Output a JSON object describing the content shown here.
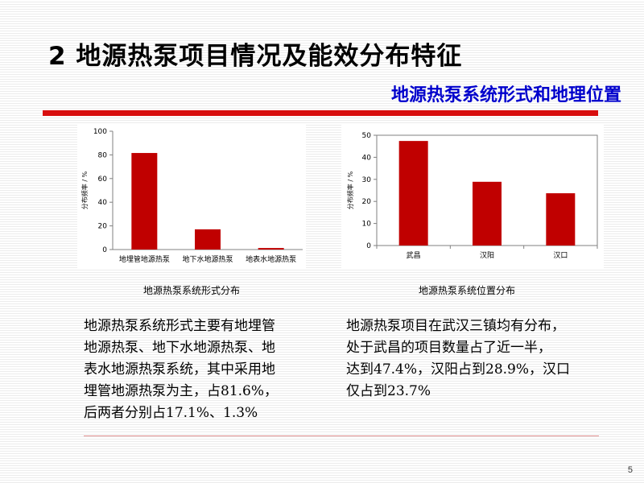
{
  "slide": {
    "title": "2 地源热泵项目情况及能效分布特征",
    "subtitle": "地源热泵系统形式和地理位置",
    "page_number": "5",
    "accent_color": "#d80f0f",
    "subtitle_color": "#0000cc"
  },
  "captions": {
    "left": "地源热泵系统形式分布",
    "right": "地源热泵系统位置分布"
  },
  "paragraphs": {
    "left": [
      "地源热泵系统形式主要有地埋管",
      "地源热泵、地下水地源热泵、地",
      "表水地源热泵系统，其中采用地",
      "埋管地源热泵为主，占81.6%，",
      "后两者分别占17.1%、1.3%"
    ],
    "right": [
      "地源热泵项目在武汉三镇均有分布，",
      "处于武昌的项目数量占了近一半，",
      "达到47.4%，汉阳占到28.9%，汉口",
      "仅占到23.7%"
    ]
  },
  "chart_data": [
    {
      "type": "bar",
      "categories": [
        "地埋管地源热泵",
        "地下水地源热泵",
        "地表水地源热泵"
      ],
      "values": [
        81.6,
        17.1,
        1.3
      ],
      "title": "",
      "xlabel": "",
      "ylabel": "分布频率 / %",
      "ylim": [
        0,
        100
      ],
      "yticks": [
        0,
        20,
        40,
        60,
        80,
        100
      ],
      "grid": false,
      "bar_color": "#c00000"
    },
    {
      "type": "bar",
      "categories": [
        "武昌",
        "汉阳",
        "汉口"
      ],
      "values": [
        47.4,
        28.9,
        23.7
      ],
      "title": "",
      "xlabel": "",
      "ylabel": "分布频率 / %",
      "ylim": [
        0,
        50
      ],
      "yticks": [
        0,
        10,
        20,
        30,
        40,
        50
      ],
      "grid": false,
      "bar_color": "#c00000"
    }
  ]
}
